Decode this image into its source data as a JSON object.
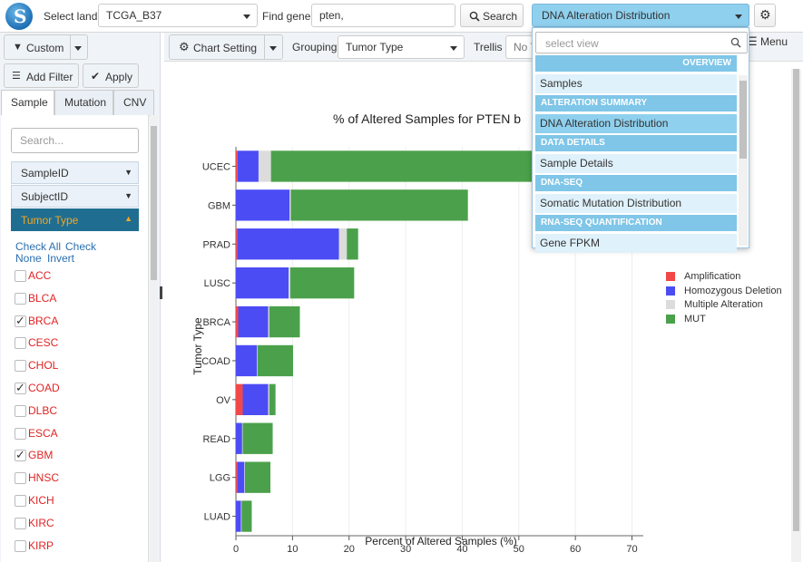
{
  "toolbar": {
    "select_land_label": "Select land",
    "land_value": "TCGA_B37",
    "find_gene_label": "Find gene",
    "gene_value": "pten,",
    "search_label": "Search",
    "view_value": "DNA Alteration Distribution"
  },
  "left": {
    "custom_label": "Custom",
    "add_filter_label": "Add Filter",
    "apply_label": "Apply",
    "tabs": [
      "Sample",
      "Mutation",
      "CNV"
    ],
    "search_placeholder": "Search...",
    "filters": [
      "SampleID",
      "SubjectID",
      "Tumor Type"
    ],
    "check_links": [
      "Check All",
      "Check",
      "None",
      "Invert"
    ],
    "tumor_types": [
      {
        "name": "ACC",
        "checked": false
      },
      {
        "name": "BLCA",
        "checked": false
      },
      {
        "name": "BRCA",
        "checked": true
      },
      {
        "name": "CESC",
        "checked": false
      },
      {
        "name": "CHOL",
        "checked": false
      },
      {
        "name": "COAD",
        "checked": true
      },
      {
        "name": "DLBC",
        "checked": false
      },
      {
        "name": "ESCA",
        "checked": false
      },
      {
        "name": "GBM",
        "checked": true
      },
      {
        "name": "HNSC",
        "checked": false
      },
      {
        "name": "KICH",
        "checked": false
      },
      {
        "name": "KIRC",
        "checked": false
      },
      {
        "name": "KIRP",
        "checked": false
      }
    ]
  },
  "main_toolbar": {
    "chart_setting_label": "Chart Setting",
    "grouping_label": "Grouping",
    "grouping_value": "Tumor Type",
    "trellis_label": "Trellis",
    "trellis_value": "No T",
    "menu_label": "Menu"
  },
  "dropdown": {
    "search_placeholder": "select view",
    "sections": [
      {
        "title": "OVERVIEW",
        "items": [
          "Samples"
        ]
      },
      {
        "title": "ALTERATION SUMMARY",
        "items": [
          "DNA Alteration Distribution"
        ]
      },
      {
        "title": "DATA DETAILS",
        "items": [
          "Sample Details"
        ]
      },
      {
        "title": "DNA-SEQ",
        "items": [
          "Somatic Mutation Distribution"
        ]
      },
      {
        "title": "RNA-SEQ QUANTIFICATION",
        "items": [
          "Gene FPKM"
        ]
      }
    ],
    "selected": "DNA Alteration Distribution"
  },
  "chart_data": {
    "type": "bar",
    "orientation": "horizontal",
    "stacked": true,
    "title": "% of Altered Samples for PTEN b",
    "xlabel": "Percent of Altered Samples (%)",
    "ylabel": "Tumor Type",
    "xlim": [
      0,
      72
    ],
    "xticks": [
      0,
      10,
      20,
      30,
      40,
      50,
      60,
      70
    ],
    "categories": [
      "UCEC",
      "GBM",
      "PRAD",
      "LUSC",
      "BRCA",
      "COAD",
      "OV",
      "READ",
      "LGG",
      "LUAD"
    ],
    "series": [
      {
        "name": "Amplification",
        "color": "#f24848",
        "values": [
          0.3,
          0,
          0.2,
          0,
          0.4,
          0,
          1.2,
          0,
          0.2,
          0
        ]
      },
      {
        "name": "Homozygous Deletion",
        "color": "#4c4cf5",
        "values": [
          3.7,
          9.5,
          18.0,
          9.3,
          5.3,
          3.7,
          4.5,
          1.1,
          1.3,
          0.9
        ]
      },
      {
        "name": "Multiple Alteration",
        "color": "#dcdcdc",
        "values": [
          2.2,
          0.2,
          1.4,
          0.3,
          0.2,
          0.1,
          0.2,
          0.1,
          0.1,
          0.1
        ]
      },
      {
        "name": "MUT",
        "color": "#4ba14b",
        "values": [
          63.0,
          31.3,
          2.0,
          11.3,
          5.4,
          6.3,
          1.1,
          5.3,
          4.5,
          1.8
        ]
      }
    ]
  },
  "colors": {
    "accent": "#1e6fb5",
    "active_filter": "#1f6e91",
    "dropdown_section": "#7fc6e8"
  }
}
